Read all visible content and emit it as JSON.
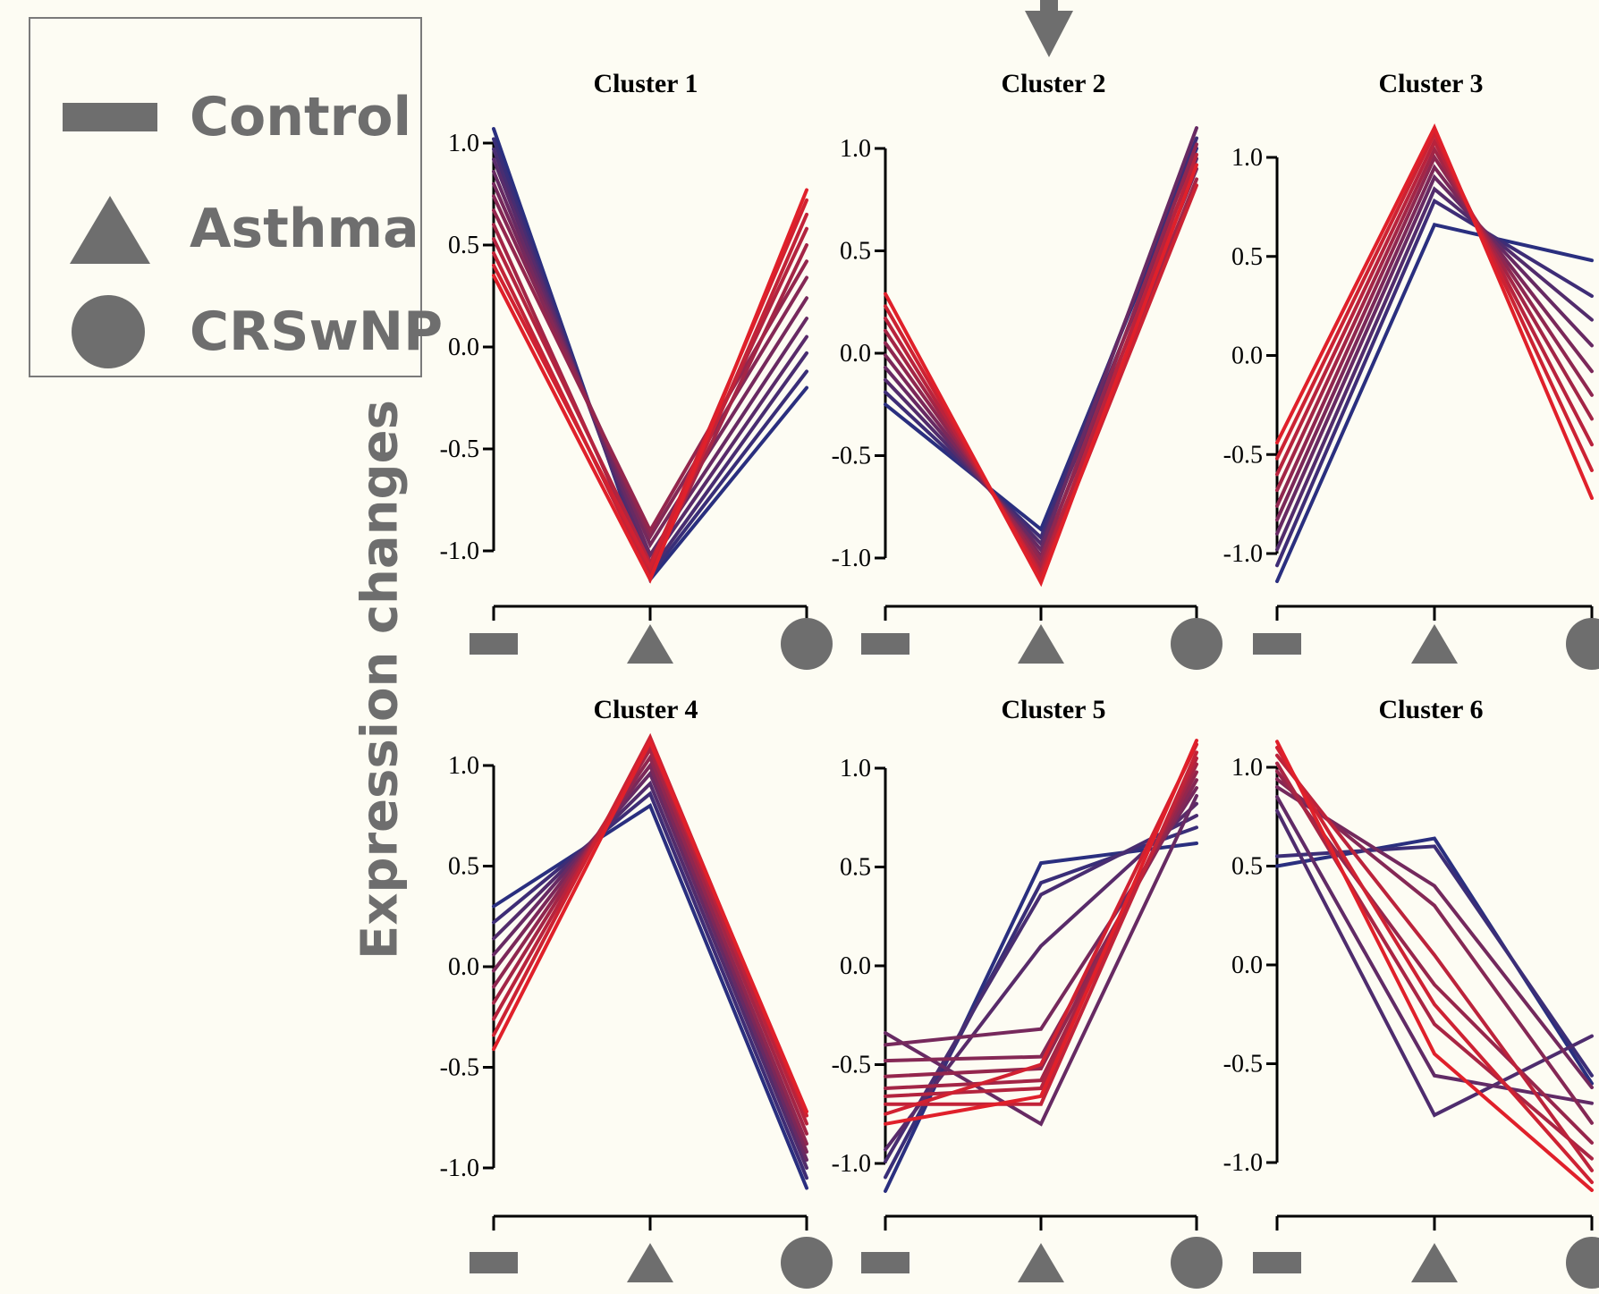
{
  "legend": {
    "items": [
      {
        "label": "Control",
        "shape": "rect"
      },
      {
        "label": "Asthma",
        "shape": "triangle"
      },
      {
        "label": "CRSwNP",
        "shape": "circle"
      }
    ]
  },
  "ylabel": "Expression changes",
  "colors": {
    "low": "#2a2f7f",
    "high": "#e0202a",
    "symbol": "#6e6e6e",
    "axis": "#000000"
  },
  "chart_data": [
    {
      "type": "line",
      "title": "Cluster 1",
      "categories": [
        "Control",
        "Asthma",
        "CRSwNP"
      ],
      "ylim": [
        -1.0,
        1.0
      ],
      "yticks": [
        "1.0",
        "0.5",
        "0.0",
        "-0.5",
        "-1.0"
      ],
      "series": [
        {
          "values": [
            1.07,
            -1.14,
            -0.2
          ]
        },
        {
          "values": [
            1.02,
            -1.12,
            -0.12
          ]
        },
        {
          "values": [
            0.97,
            -1.1,
            -0.03
          ]
        },
        {
          "values": [
            0.92,
            -1.06,
            0.05
          ]
        },
        {
          "values": [
            0.86,
            -1.02,
            0.14
          ]
        },
        {
          "values": [
            0.8,
            -0.97,
            0.24
          ]
        },
        {
          "values": [
            0.74,
            -0.93,
            0.34
          ]
        },
        {
          "values": [
            0.67,
            -0.9,
            0.42
          ]
        },
        {
          "values": [
            0.6,
            -1.1,
            0.5
          ]
        },
        {
          "values": [
            0.53,
            -1.06,
            0.58
          ]
        },
        {
          "values": [
            0.46,
            -1.12,
            0.65
          ]
        },
        {
          "values": [
            0.4,
            -1.08,
            0.72
          ]
        },
        {
          "values": [
            0.35,
            -1.14,
            0.77
          ]
        }
      ]
    },
    {
      "type": "line",
      "title": "Cluster 2",
      "categories": [
        "Control",
        "Asthma",
        "CRSwNP"
      ],
      "ylim": [
        -1.0,
        1.0
      ],
      "yticks": [
        "1.0",
        "0.5",
        "0.0",
        "-0.5",
        "-1.0"
      ],
      "series": [
        {
          "values": [
            -0.25,
            -0.86,
            1.0
          ]
        },
        {
          "values": [
            -0.19,
            -0.9,
            1.05
          ]
        },
        {
          "values": [
            -0.13,
            -0.93,
            0.95
          ]
        },
        {
          "values": [
            -0.07,
            -0.96,
            1.1
          ]
        },
        {
          "values": [
            -0.01,
            -0.99,
            0.9
          ]
        },
        {
          "values": [
            0.05,
            -1.01,
            1.02
          ]
        },
        {
          "values": [
            0.11,
            -1.04,
            0.85
          ]
        },
        {
          "values": [
            0.17,
            -1.07,
            0.97
          ]
        },
        {
          "values": [
            0.23,
            -1.09,
            0.82
          ]
        },
        {
          "values": [
            0.29,
            -1.12,
            0.92
          ]
        }
      ]
    },
    {
      "type": "line",
      "title": "Cluster 3",
      "categories": [
        "Control",
        "Asthma",
        "CRSwNP"
      ],
      "ylim": [
        -1.0,
        1.0
      ],
      "yticks": [
        "1.0",
        "0.5",
        "0.0",
        "-0.5",
        "-1.0"
      ],
      "series": [
        {
          "values": [
            -1.14,
            0.66,
            0.48
          ]
        },
        {
          "values": [
            -1.06,
            0.78,
            0.3
          ]
        },
        {
          "values": [
            -0.98,
            0.84,
            0.18
          ]
        },
        {
          "values": [
            -0.9,
            0.9,
            0.05
          ]
        },
        {
          "values": [
            -0.83,
            0.95,
            -0.08
          ]
        },
        {
          "values": [
            -0.76,
            1.0,
            -0.2
          ]
        },
        {
          "values": [
            -0.68,
            1.04,
            -0.32
          ]
        },
        {
          "values": [
            -0.6,
            1.08,
            -0.45
          ]
        },
        {
          "values": [
            -0.52,
            1.12,
            -0.58
          ]
        },
        {
          "values": [
            -0.44,
            1.15,
            -0.72
          ]
        }
      ]
    },
    {
      "type": "line",
      "title": "Cluster 4",
      "categories": [
        "Control",
        "Asthma",
        "CRSwNP"
      ],
      "ylim": [
        -1.0,
        1.0
      ],
      "yticks": [
        "1.0",
        "0.5",
        "0.0",
        "-0.5",
        "-1.0"
      ],
      "series": [
        {
          "values": [
            0.3,
            0.8,
            -1.1
          ]
        },
        {
          "values": [
            0.22,
            0.86,
            -1.05
          ]
        },
        {
          "values": [
            0.14,
            0.91,
            -1.0
          ]
        },
        {
          "values": [
            0.06,
            0.96,
            -0.96
          ]
        },
        {
          "values": [
            -0.02,
            1.0,
            -0.92
          ]
        },
        {
          "values": [
            -0.1,
            1.04,
            -0.88
          ]
        },
        {
          "values": [
            -0.18,
            1.08,
            -0.83
          ]
        },
        {
          "values": [
            -0.26,
            1.11,
            -0.78
          ]
        },
        {
          "values": [
            -0.34,
            1.14,
            -0.74
          ]
        },
        {
          "values": [
            -0.41,
            1.12,
            -0.72
          ]
        }
      ]
    },
    {
      "type": "line",
      "title": "Cluster 5",
      "categories": [
        "Control",
        "Asthma",
        "CRSwNP"
      ],
      "ylim": [
        -1.0,
        1.0
      ],
      "yticks": [
        "1.0",
        "0.5",
        "0.0",
        "-0.5",
        "-1.0"
      ],
      "series": [
        {
          "values": [
            -1.14,
            0.52,
            0.62
          ]
        },
        {
          "values": [
            -1.07,
            0.42,
            0.7
          ]
        },
        {
          "values": [
            -0.99,
            0.36,
            0.76
          ]
        },
        {
          "values": [
            -0.93,
            0.1,
            0.82
          ]
        },
        {
          "values": [
            -0.34,
            -0.8,
            0.86
          ]
        },
        {
          "values": [
            -0.4,
            -0.32,
            0.9
          ]
        },
        {
          "values": [
            -0.48,
            -0.46,
            0.94
          ]
        },
        {
          "values": [
            -0.56,
            -0.52,
            0.98
          ]
        },
        {
          "values": [
            -0.62,
            -0.58,
            1.02
          ]
        },
        {
          "values": [
            -0.66,
            -0.62,
            1.05
          ]
        },
        {
          "values": [
            -0.7,
            -0.7,
            1.08
          ]
        },
        {
          "values": [
            -0.75,
            -0.5,
            1.12
          ]
        },
        {
          "values": [
            -0.8,
            -0.66,
            1.14
          ]
        }
      ]
    },
    {
      "type": "line",
      "title": "Cluster 6",
      "categories": [
        "Control",
        "Asthma",
        "CRSwNP"
      ],
      "ylim": [
        -1.0,
        1.0
      ],
      "yticks": [
        "1.0",
        "0.5",
        "0.0",
        "-0.5",
        "-1.0"
      ],
      "series": [
        {
          "values": [
            0.5,
            0.64,
            -0.6
          ]
        },
        {
          "values": [
            0.55,
            0.6,
            -0.56
          ]
        },
        {
          "values": [
            0.78,
            -0.76,
            -0.36
          ]
        },
        {
          "values": [
            0.85,
            -0.56,
            -0.7
          ]
        },
        {
          "values": [
            0.9,
            0.4,
            -0.62
          ]
        },
        {
          "values": [
            0.94,
            0.3,
            -0.8
          ]
        },
        {
          "values": [
            0.98,
            -0.1,
            -0.9
          ]
        },
        {
          "values": [
            1.02,
            -0.3,
            -0.98
          ]
        },
        {
          "values": [
            1.06,
            0.05,
            -1.04
          ]
        },
        {
          "values": [
            1.1,
            -0.2,
            -1.1
          ]
        },
        {
          "values": [
            1.13,
            -0.45,
            -1.14
          ]
        }
      ]
    }
  ]
}
